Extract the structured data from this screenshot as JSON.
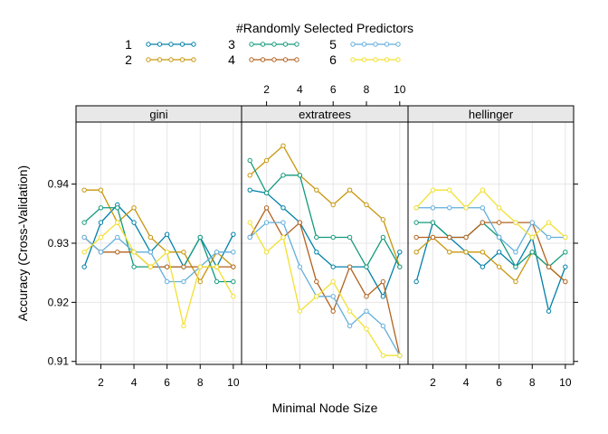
{
  "chart_data": {
    "type": "line",
    "legend_title": "#Randomly Selected Predictors",
    "legend_position": "top",
    "xlabel": "Minimal Node Size",
    "ylabel": "Accuracy (Cross-Validation)",
    "xlim": [
      0.5,
      10.5
    ],
    "ylim": [
      0.9095,
      0.9505
    ],
    "x": [
      1,
      2,
      3,
      4,
      5,
      6,
      7,
      8,
      9,
      10
    ],
    "x_ticks": [
      2,
      4,
      6,
      8,
      10
    ],
    "x_tick_labels": [
      "2",
      "4",
      "6",
      "8",
      "10"
    ],
    "y_ticks": [
      0.91,
      0.92,
      0.93,
      0.94
    ],
    "y_tick_labels": [
      "0.91",
      "0.92",
      "0.93",
      "0.94"
    ],
    "grid": true,
    "panels": [
      {
        "title": "gini",
        "series": [
          {
            "name": "1",
            "color": "#0080a8",
            "values": [
              0.926,
              0.9335,
              0.9365,
              0.9335,
              0.9285,
              0.9315,
              0.926,
              0.931,
              0.926,
              0.9315
            ]
          },
          {
            "name": "2",
            "color": "#c8960c",
            "values": [
              0.939,
              0.939,
              0.9335,
              0.936,
              0.931,
              0.9285,
              0.9285,
              0.9235,
              0.9285,
              0.926
            ]
          },
          {
            "name": "3",
            "color": "#139a7c",
            "values": [
              0.9335,
              0.936,
              0.936,
              0.926,
              0.926,
              0.926,
              0.926,
              0.931,
              0.9235,
              0.9235
            ]
          },
          {
            "name": "4",
            "color": "#b2621e",
            "values": [
              0.931,
              0.9285,
              0.9285,
              0.9285,
              0.926,
              0.926,
              0.926,
              0.926,
              0.926,
              0.926
            ]
          },
          {
            "name": "5",
            "color": "#62aedc",
            "values": [
              0.931,
              0.9285,
              0.931,
              0.9285,
              0.9285,
              0.9235,
              0.9235,
              0.926,
              0.9285,
              0.9285
            ]
          },
          {
            "name": "6",
            "color": "#f2e030",
            "values": [
              0.9285,
              0.931,
              0.9335,
              0.9285,
              0.926,
              0.9285,
              0.916,
              0.926,
              0.926,
              0.921
            ]
          }
        ]
      },
      {
        "title": "extratrees",
        "series": [
          {
            "name": "1",
            "color": "#0080a8",
            "values": [
              0.939,
              0.9385,
              0.936,
              0.9335,
              0.9285,
              0.926,
              0.926,
              0.926,
              0.921,
              0.9285
            ]
          },
          {
            "name": "2",
            "color": "#c8960c",
            "values": [
              0.9415,
              0.944,
              0.9465,
              0.9415,
              0.939,
              0.9365,
              0.939,
              0.9365,
              0.934,
              0.926
            ]
          },
          {
            "name": "3",
            "color": "#139a7c",
            "values": [
              0.944,
              0.9385,
              0.9415,
              0.9415,
              0.931,
              0.931,
              0.931,
              0.926,
              0.931,
              0.926
            ]
          },
          {
            "name": "4",
            "color": "#b2621e",
            "values": [
              0.931,
              0.936,
              0.931,
              0.9335,
              0.9235,
              0.9185,
              0.926,
              0.921,
              0.9235,
              0.911
            ]
          },
          {
            "name": "5",
            "color": "#62aedc",
            "values": [
              0.931,
              0.9335,
              0.9335,
              0.926,
              0.921,
              0.921,
              0.916,
              0.9185,
              0.916,
              0.911
            ]
          },
          {
            "name": "6",
            "color": "#f2e030",
            "values": [
              0.9335,
              0.9285,
              0.931,
              0.9185,
              0.921,
              0.9235,
              0.9185,
              0.9155,
              0.911,
              0.911
            ]
          }
        ]
      },
      {
        "title": "hellinger",
        "series": [
          {
            "name": "1",
            "color": "#0080a8",
            "values": [
              0.9235,
              0.9335,
              0.931,
              0.9285,
              0.926,
              0.9285,
              0.926,
              0.931,
              0.9185,
              0.926
            ]
          },
          {
            "name": "2",
            "color": "#c8960c",
            "values": [
              0.9285,
              0.931,
              0.9285,
              0.9285,
              0.9285,
              0.926,
              0.9235,
              0.9285,
              0.926,
              0.9235
            ]
          },
          {
            "name": "3",
            "color": "#139a7c",
            "values": [
              0.9335,
              0.9335,
              0.931,
              0.931,
              0.9335,
              0.931,
              0.926,
              0.9285,
              0.926,
              0.9285
            ]
          },
          {
            "name": "4",
            "color": "#b2621e",
            "values": [
              0.931,
              0.931,
              0.931,
              0.931,
              0.9335,
              0.9335,
              0.9335,
              0.9335,
              0.926,
              0.9235
            ]
          },
          {
            "name": "5",
            "color": "#62aedc",
            "values": [
              0.936,
              0.936,
              0.936,
              0.936,
              0.936,
              0.931,
              0.9285,
              0.9335,
              0.931,
              0.931
            ]
          },
          {
            "name": "6",
            "color": "#f2e030",
            "values": [
              0.936,
              0.939,
              0.939,
              0.936,
              0.939,
              0.936,
              0.9335,
              0.931,
              0.9335,
              0.931
            ]
          }
        ]
      }
    ]
  }
}
